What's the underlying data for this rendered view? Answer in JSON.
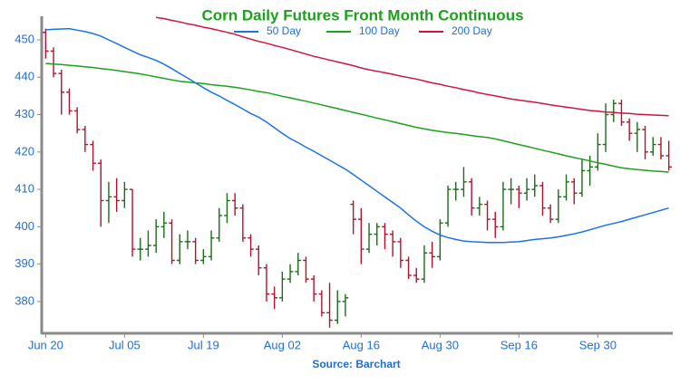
{
  "chart_data": {
    "type": "ohlc",
    "title": "Corn Daily Futures Front Month Continuous",
    "source": "Source: Barchart",
    "categories": [
      "Jun 20",
      null,
      null,
      null,
      null,
      null,
      null,
      null,
      null,
      null,
      "Jul 05",
      null,
      null,
      null,
      null,
      null,
      null,
      null,
      null,
      null,
      "Jul 19",
      null,
      null,
      null,
      null,
      null,
      null,
      null,
      null,
      null,
      "Aug 02",
      null,
      null,
      null,
      null,
      null,
      null,
      null,
      null,
      null,
      "Aug 16",
      null,
      null,
      null,
      null,
      null,
      null,
      null,
      null,
      null,
      "Aug 30",
      null,
      null,
      null,
      null,
      null,
      null,
      null,
      null,
      null,
      "Sep 16",
      null,
      null,
      null,
      null,
      null,
      null,
      null,
      null,
      null,
      "Sep 30",
      null,
      null,
      null,
      null,
      null,
      null,
      null,
      null,
      null
    ],
    "open": [
      452,
      447,
      441,
      436,
      431,
      426,
      422,
      417,
      407,
      408,
      407,
      410,
      394,
      394,
      395,
      400,
      401,
      391,
      396,
      396,
      391,
      392,
      397,
      403,
      407,
      405,
      397,
      394,
      389,
      382,
      381,
      386,
      388,
      391,
      386,
      382,
      377,
      375,
      380,
      406,
      402,
      394,
      398,
      400,
      398,
      396,
      391,
      387,
      386,
      393,
      392,
      401,
      410,
      410,
      412,
      405,
      406,
      402,
      400,
      410,
      410,
      409,
      410,
      411,
      405,
      402,
      408,
      412,
      409,
      415,
      416,
      422,
      430,
      433,
      428,
      425,
      426,
      420,
      422,
      419
    ],
    "high": [
      453,
      448,
      442,
      437,
      432,
      427,
      423,
      418,
      412,
      413,
      412,
      410,
      397,
      399,
      402,
      404,
      402,
      398,
      399,
      397,
      394,
      399,
      405,
      409,
      409,
      406,
      398,
      395,
      390,
      384,
      388,
      390,
      393,
      392,
      387,
      383,
      385,
      383,
      382,
      407,
      405,
      401,
      401,
      401,
      399,
      397,
      392,
      389,
      395,
      396,
      402,
      411,
      412,
      416,
      413,
      408,
      407,
      404,
      412,
      413,
      411,
      413,
      414,
      412,
      406,
      410,
      414,
      413,
      418,
      419,
      425,
      433,
      434,
      434,
      429,
      428,
      427,
      424,
      424,
      423
    ],
    "low": [
      445,
      440,
      430,
      430,
      425,
      420,
      415,
      400,
      401,
      404,
      405,
      392,
      391,
      392,
      393,
      397,
      390,
      390,
      394,
      390,
      390,
      391,
      396,
      401,
      403,
      396,
      392,
      387,
      380,
      378,
      380,
      385,
      387,
      385,
      380,
      376,
      373,
      374,
      376,
      398,
      390,
      393,
      395,
      394,
      392,
      389,
      386,
      385,
      385,
      389,
      391,
      400,
      407,
      408,
      403,
      403,
      399,
      397,
      399,
      406,
      405,
      407,
      408,
      403,
      401,
      401,
      407,
      406,
      408,
      411,
      415,
      420,
      428,
      427,
      423,
      420,
      418,
      419,
      418,
      415
    ],
    "close": [
      447,
      441,
      436,
      431,
      426,
      422,
      417,
      407,
      408,
      407,
      410,
      394,
      394,
      395,
      400,
      401,
      391,
      396,
      396,
      391,
      392,
      397,
      403,
      407,
      405,
      397,
      394,
      389,
      382,
      381,
      386,
      388,
      391,
      386,
      382,
      377,
      375,
      380,
      381,
      402,
      394,
      398,
      400,
      398,
      396,
      391,
      387,
      386,
      393,
      392,
      401,
      410,
      410,
      412,
      405,
      406,
      402,
      400,
      410,
      410,
      409,
      410,
      411,
      405,
      402,
      408,
      412,
      409,
      415,
      416,
      422,
      430,
      433,
      428,
      425,
      426,
      420,
      422,
      419,
      416
    ],
    "up_color": "#1b6b1b",
    "down_color": "#b0142c",
    "series": [
      {
        "name": "50 Day",
        "color": "#1a73e8",
        "values": [
          452.7,
          452.8,
          452.9,
          453,
          452.6,
          452.2,
          451.7,
          451,
          450,
          449,
          448,
          447,
          446,
          445.3,
          444.5,
          443.5,
          442.3,
          441,
          439.8,
          438.5,
          437.2,
          436,
          435,
          433.8,
          432.7,
          431.5,
          430.3,
          429.3,
          428,
          426.5,
          425,
          423.6,
          422.5,
          421.3,
          420.2,
          419,
          417.8,
          416.6,
          415.4,
          414,
          412.5,
          411,
          409.5,
          408,
          406.5,
          405,
          403.2,
          401.5,
          400,
          398.8,
          397.8,
          397.1,
          396.6,
          396.2,
          396,
          395.9,
          395.8,
          395.8,
          395.8,
          395.9,
          396,
          396.3,
          396.6,
          396.8,
          397,
          397.3,
          397.7,
          398.1,
          398.6,
          399.2,
          399.8,
          400.4,
          400.9,
          401.4,
          402,
          402.6,
          403.2,
          403.8,
          404.4,
          405
        ]
      },
      {
        "name": "100 Day",
        "color": "#1aa31a",
        "values": [
          443.7,
          443.5,
          443.4,
          443.2,
          443,
          442.8,
          442.6,
          442.3,
          442.1,
          441.8,
          441.5,
          441.2,
          440.9,
          440.5,
          440.1,
          439.7,
          439.3,
          438.9,
          438.7,
          438.5,
          438.3,
          438,
          437.8,
          437.6,
          437.3,
          437,
          436.6,
          436.2,
          435.9,
          435.4,
          434.9,
          434.5,
          434,
          433.6,
          433.1,
          432.6,
          432.1,
          431.6,
          431.1,
          430.6,
          430.1,
          429.6,
          429.1,
          428.6,
          428.1,
          427.6,
          427.1,
          426.6,
          426.2,
          425.8,
          425.5,
          425.2,
          425,
          424.7,
          424.4,
          424.1,
          423.9,
          423.5,
          423,
          422.5,
          422,
          421.5,
          421,
          420.5,
          420,
          419.5,
          419,
          418.5,
          418.1,
          417.6,
          417.1,
          416.7,
          416.2,
          415.8,
          415.5,
          415.3,
          415.1,
          414.9,
          414.8,
          414.6
        ]
      },
      {
        "name": "200 Day",
        "color": "#d0143c",
        "values": [
          null,
          null,
          null,
          null,
          null,
          null,
          null,
          null,
          null,
          null,
          null,
          null,
          null,
          null,
          456,
          455.7,
          455.2,
          454.8,
          454.3,
          453.9,
          453.4,
          453,
          452.5,
          452,
          451.5,
          450.8,
          450.2,
          449.6,
          449.1,
          448.5,
          448,
          447.4,
          446.8,
          446.2,
          445.6,
          445.1,
          444.6,
          444.1,
          443.6,
          443.1,
          442.5,
          442,
          441.6,
          441.2,
          440.8,
          440.3,
          439.9,
          439.5,
          439,
          438.5,
          438.1,
          437.6,
          437.2,
          436.7,
          436.3,
          435.8,
          435.4,
          435,
          434.6,
          434.2,
          433.9,
          433.6,
          433.3,
          433,
          432.6,
          432.3,
          432,
          431.7,
          431.4,
          431.1,
          430.9,
          430.7,
          430.6,
          430.4,
          430.3,
          430.1,
          430,
          429.9,
          429.8,
          429.7
        ]
      }
    ],
    "ylim": [
      371.5,
      456.3
    ],
    "yticks": [
      380,
      390,
      400,
      410,
      420,
      430,
      440,
      450
    ],
    "grid": false,
    "legend": "top"
  }
}
